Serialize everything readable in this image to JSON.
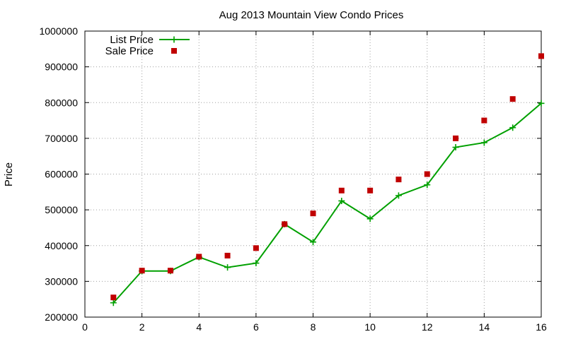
{
  "chart_data": {
    "type": "line",
    "title": "Aug 2013 Mountain View Condo Prices",
    "xlabel": "",
    "ylabel": "Price",
    "xlim": [
      0,
      16
    ],
    "ylim": [
      200000,
      1000000
    ],
    "x_ticks": [
      0,
      2,
      4,
      6,
      8,
      10,
      12,
      14,
      16
    ],
    "y_ticks": [
      200000,
      300000,
      400000,
      500000,
      600000,
      700000,
      800000,
      900000,
      1000000
    ],
    "grid": true,
    "legend_position": "top-left",
    "series": [
      {
        "name": "List Price",
        "style": "line-with-plus-markers",
        "color": "#00a000",
        "x": [
          1,
          2,
          3,
          4,
          5,
          6,
          7,
          8,
          9,
          10,
          11,
          12,
          13,
          14,
          15,
          16
        ],
        "y": [
          240000,
          329000,
          329000,
          368000,
          339000,
          351000,
          460000,
          410000,
          525000,
          475000,
          540000,
          570000,
          675000,
          688000,
          730000,
          798000
        ]
      },
      {
        "name": "Sale Price",
        "style": "square-points",
        "color": "#c00000",
        "x": [
          1,
          2,
          3,
          4,
          5,
          6,
          7,
          8,
          9,
          10,
          11,
          12,
          13,
          14,
          15,
          16
        ],
        "y": [
          255000,
          330000,
          330000,
          369000,
          372000,
          393000,
          460000,
          490000,
          554000,
          554000,
          585000,
          600000,
          700000,
          750000,
          810000,
          930000
        ]
      }
    ]
  }
}
